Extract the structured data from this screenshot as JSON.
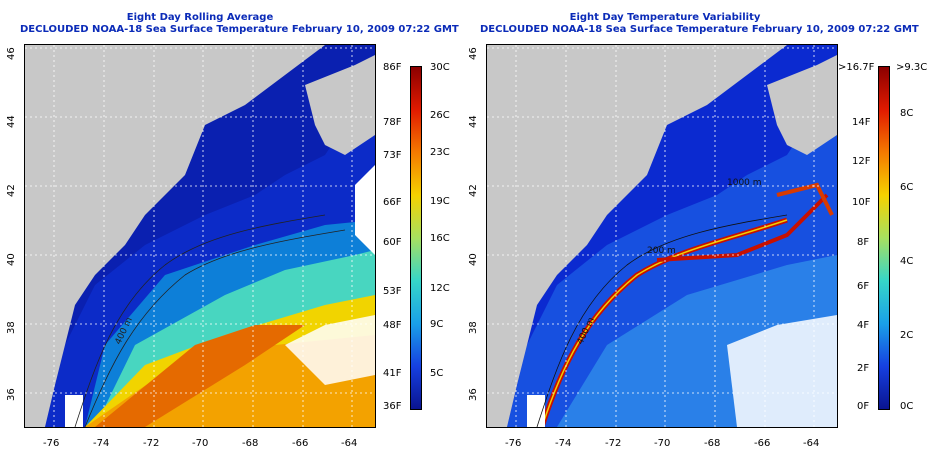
{
  "left_panel": {
    "title_line1": "Eight Day Rolling Average",
    "title_line2": "DECLOUDED NOAA-18 Sea Surface Temperature February 10, 2009 07:22 GMT",
    "x_ticks": [
      "-76",
      "-74",
      "-72",
      "-70",
      "-68",
      "-66",
      "-64"
    ],
    "y_ticks": [
      "46",
      "44",
      "42",
      "40",
      "38",
      "36"
    ],
    "contour_label": "400 m",
    "colorbar_f": [
      "86F",
      "78F",
      "73F",
      "66F",
      "60F",
      "53F",
      "48F",
      "41F",
      "36F"
    ],
    "colorbar_c": [
      "30C",
      "26C",
      "23C",
      "19C",
      "16C",
      "12C",
      "9C",
      "5C"
    ]
  },
  "right_panel": {
    "title_line1": "Eight Day Temperature Variability",
    "title_line2": "DECLOUDED NOAA-18 Sea Surface Temperature February 10, 2009 07:22 GMT",
    "x_ticks": [
      "-76",
      "-74",
      "-72",
      "-70",
      "-68",
      "-66",
      "-64"
    ],
    "y_ticks": [
      "46",
      "44",
      "42",
      "40",
      "38",
      "36"
    ],
    "contour_labels": [
      "200 m",
      "400 m",
      "1000 m"
    ],
    "colorbar_f": [
      ">16.7F",
      "14F",
      "12F",
      "10F",
      "8F",
      "6F",
      "4F",
      "2F",
      "0F"
    ],
    "colorbar_c": [
      ">9.3C",
      "8C",
      "6C",
      "4C",
      "2C",
      "0C"
    ]
  },
  "colors": {
    "title": "#0b2bb8",
    "land": "#c8c8c8",
    "cloud": "#ffffff"
  }
}
